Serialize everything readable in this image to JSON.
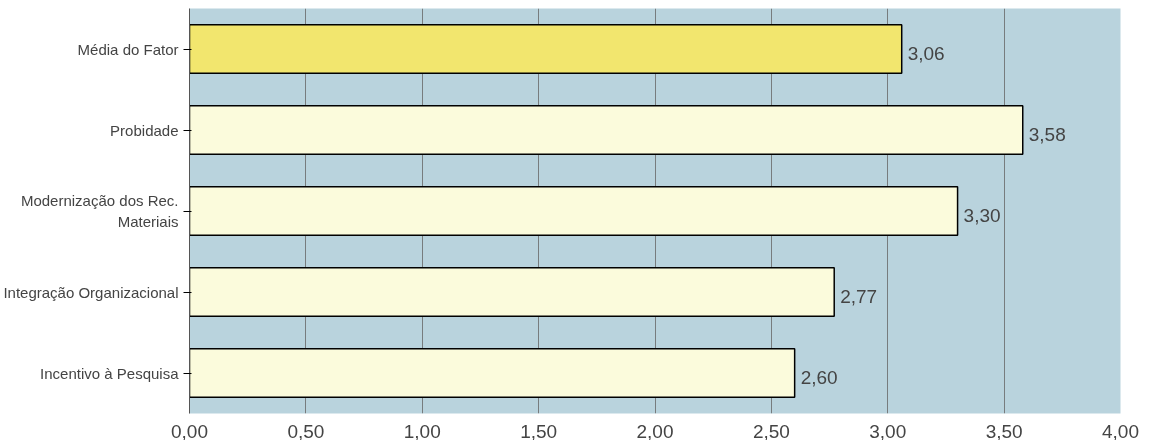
{
  "chart_data": {
    "type": "bar",
    "orientation": "horizontal",
    "categories": [
      "Média do Fator",
      "Probidade",
      "Modernização dos Rec. Materiais",
      "Integração Organizacional",
      "Incentivo à Pesquisa"
    ],
    "values": [
      3.06,
      3.58,
      3.3,
      2.77,
      2.6
    ],
    "colors": [
      "#f2e66e",
      "#fbfbdc",
      "#fbfbdc",
      "#fbfbdc",
      "#fbfbdc"
    ],
    "value_labels": [
      "3,06",
      "3,58",
      "3,30",
      "2,77",
      "2,60"
    ],
    "xlim": [
      0,
      4
    ],
    "xticks": [
      {
        "value": 0,
        "label": "0,00"
      },
      {
        "value": 0.5,
        "label": "0,50"
      },
      {
        "value": 1,
        "label": "1,00"
      },
      {
        "value": 1.5,
        "label": "1,50"
      },
      {
        "value": 2,
        "label": "2,00"
      },
      {
        "value": 2.5,
        "label": "2,50"
      },
      {
        "value": 3,
        "label": "3,00"
      },
      {
        "value": 3.5,
        "label": "3,50"
      },
      {
        "value": 4,
        "label": "4,00"
      }
    ],
    "grid": "x"
  }
}
